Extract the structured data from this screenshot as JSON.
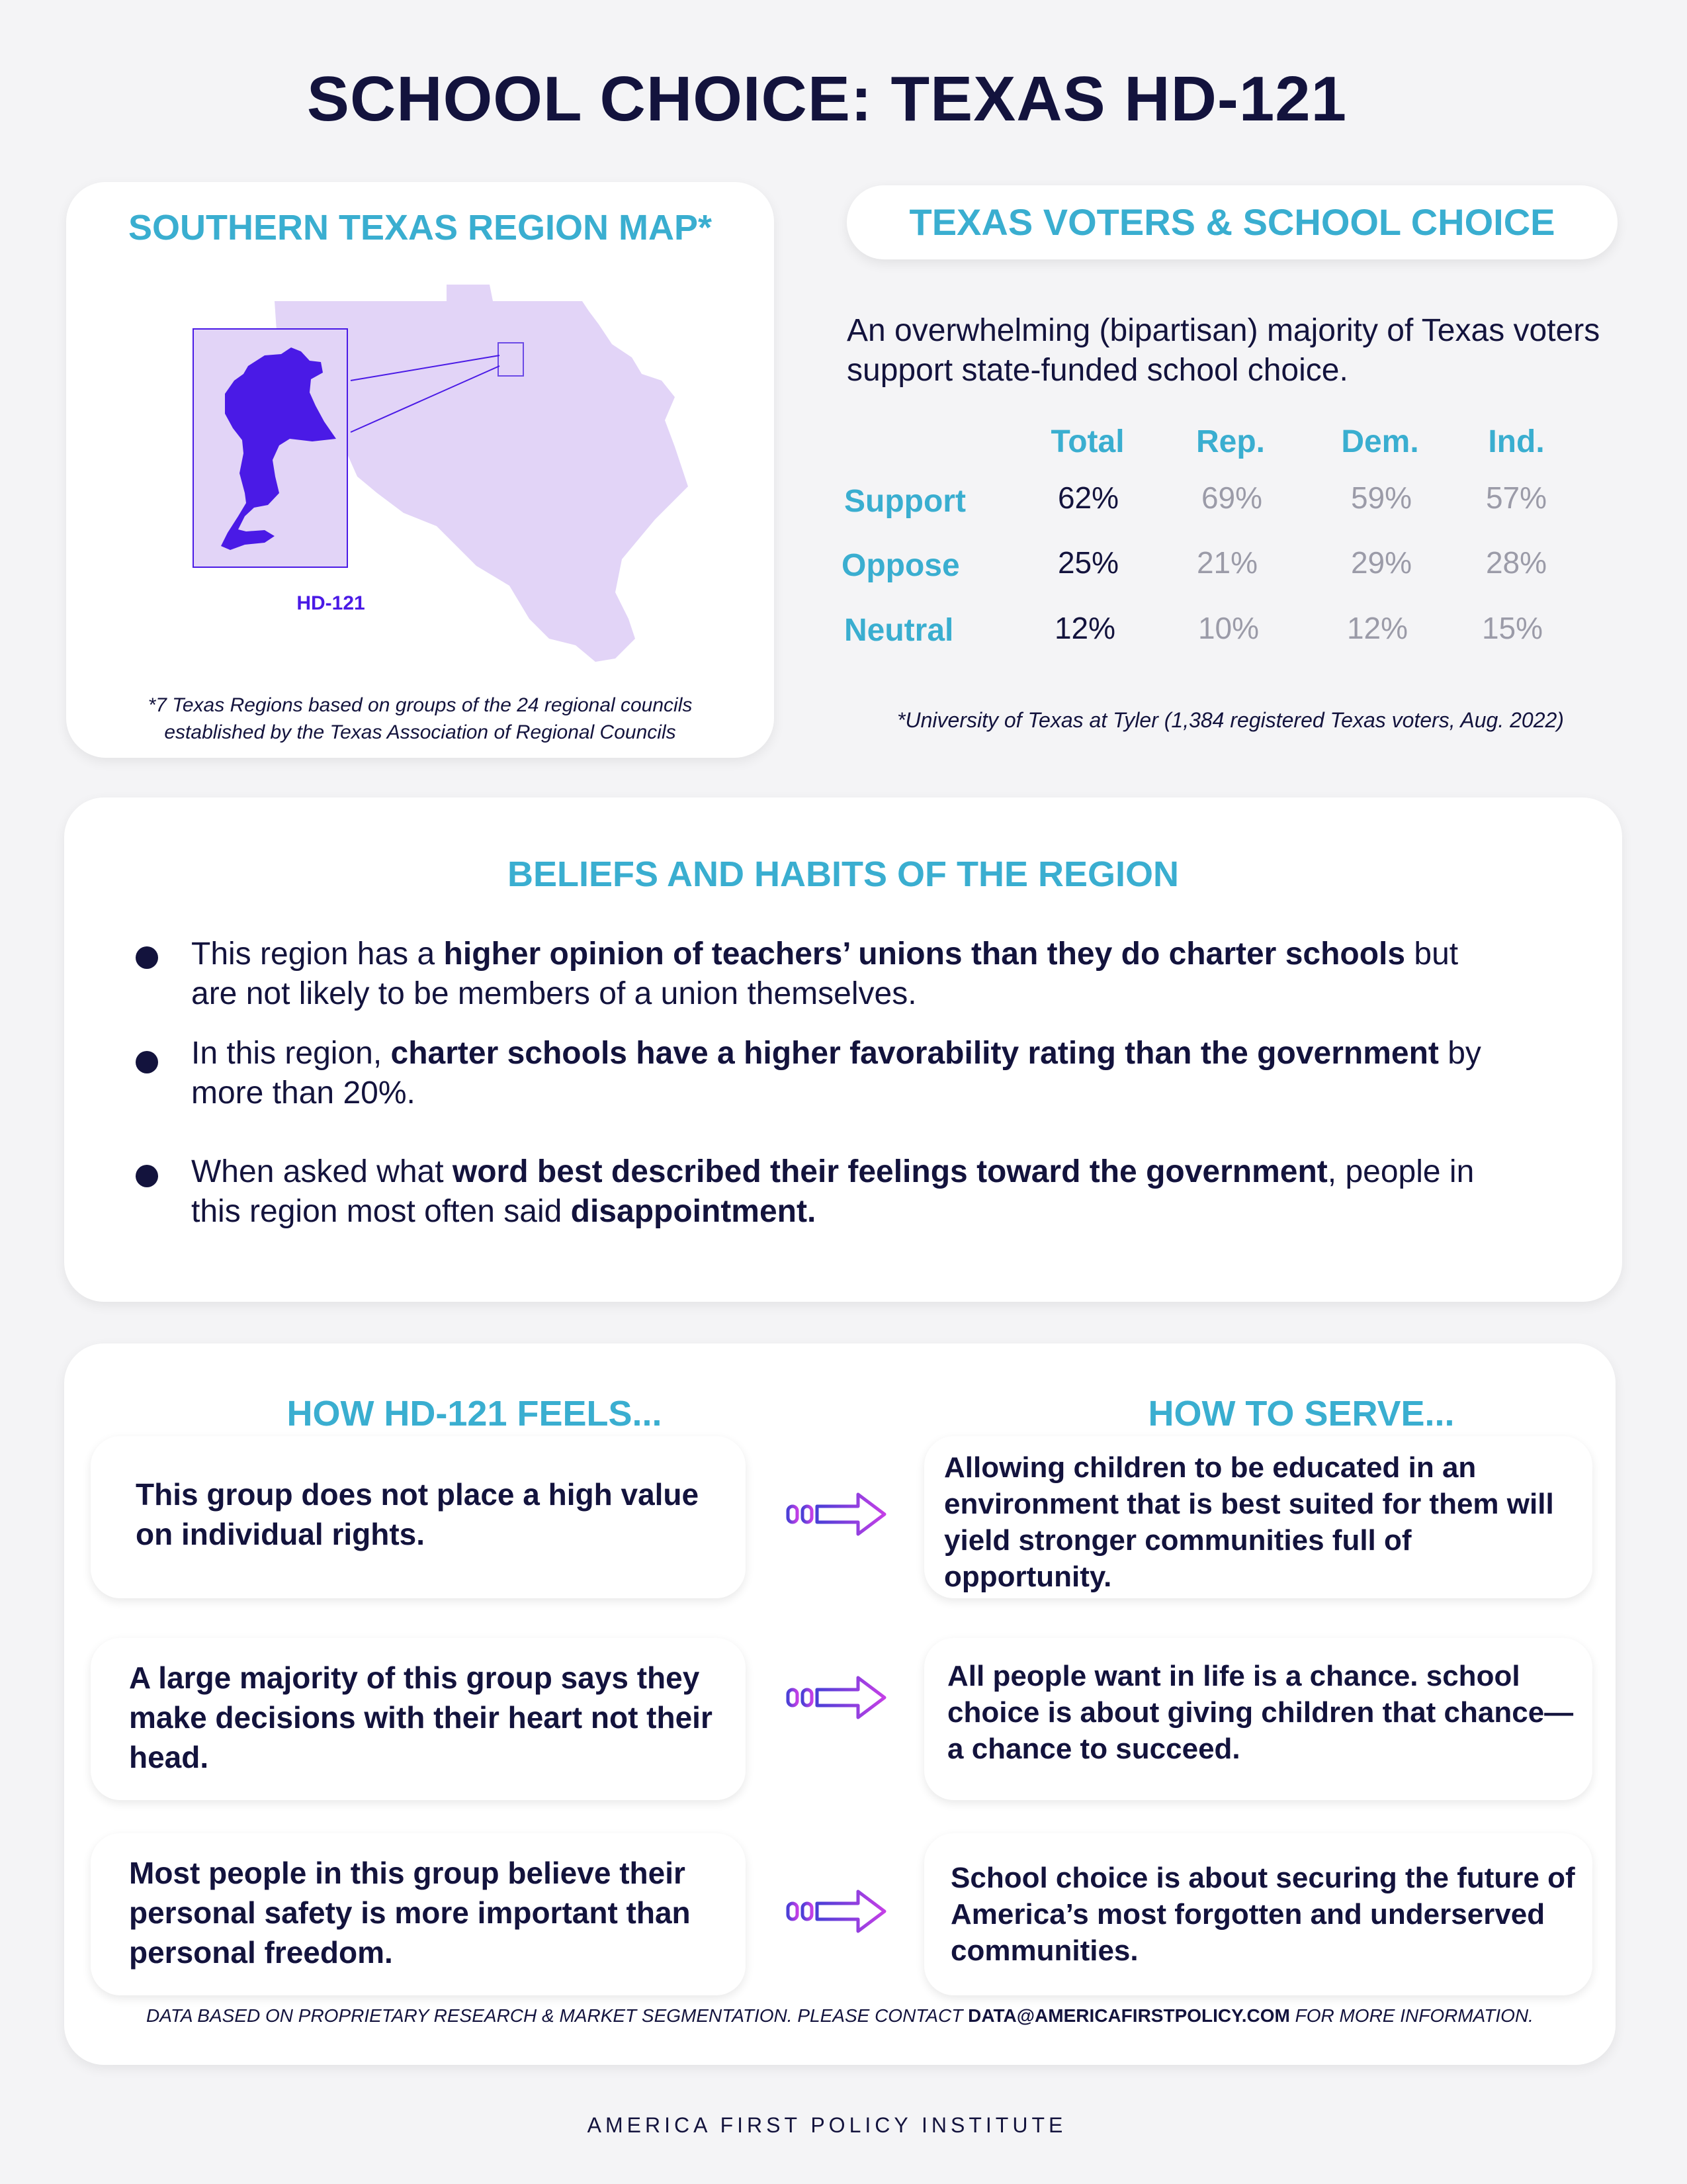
{
  "title": "SCHOOL CHOICE: TEXAS HD-121",
  "map": {
    "title": "SOUTHERN TEXAS REGION MAP*",
    "district_label": "HD-121",
    "note_line1": "*7 Texas Regions based on groups of the 24 regional councils",
    "note_line2": "established by the Texas Association of Regional Councils"
  },
  "voters": {
    "header": "TEXAS VOTERS & SCHOOL CHOICE",
    "intro": "An overwhelming (bipartisan) majority of Texas voters support state-funded school choice.",
    "columns": [
      "Total",
      "Rep.",
      "Dem.",
      "Ind."
    ],
    "rows": [
      {
        "label": "Support",
        "values": [
          "62%",
          "69%",
          "59%",
          "57%"
        ]
      },
      {
        "label": "Oppose",
        "values": [
          "25%",
          "21%",
          "29%",
          "28%"
        ]
      },
      {
        "label": "Neutral",
        "values": [
          "12%",
          "10%",
          "12%",
          "15%"
        ]
      }
    ],
    "source": "*University of Texas at Tyler (1,384 registered Texas voters, Aug. 2022)"
  },
  "beliefs": {
    "title": "BELIEFS AND HABITS OF THE REGION",
    "items": [
      {
        "p1": "This region has a ",
        "b1": "higher opinion of teachers’ unions than they do charter schools",
        "p2": " but are not likely to be members of a union themselves.",
        "b2": "",
        "p3": ""
      },
      {
        "p1": "In this region, ",
        "b1": "charter schools have a higher favorability rating than the government",
        "p2": " by more than 20%.",
        "b2": "",
        "p3": ""
      },
      {
        "p1": "When asked what ",
        "b1": "word best described their feelings toward the government",
        "p2": ", people in this region most often said ",
        "b2": "disappointment.",
        "p3": ""
      }
    ]
  },
  "feels": {
    "heading": "HOW HD-121 FEELS...",
    "items": [
      "This group does not place a high value on individual rights.",
      "A large majority of this group says they make decisions with their heart not their head.",
      "Most people in this group believe their personal safety is more important than personal freedom."
    ]
  },
  "serve": {
    "heading": "HOW TO SERVE...",
    "items": [
      "Allowing children to be educated in an environment that is best suited for them will yield stronger communities full of opportunity.",
      "All people want in life is a chance. school choice is about giving children that chance—a chance to succeed.",
      "School choice is about securing the future of America’s most forgotten and underserved communities."
    ]
  },
  "footer": {
    "note_prefix": "DATA BASED ON PROPRIETARY RESEARCH & MARKET SEGMENTATION. PLEASE CONTACT ",
    "email": "DATA@AMERICAFIRSTPOLICY.COM",
    "note_suffix": " FOR MORE INFORMATION."
  },
  "organization": "AMERICA FIRST POLICY INSTITUTE",
  "colors": {
    "navy": "#13133d",
    "teal": "#3aaed0",
    "district_purple": "#4a1ae6",
    "region_lavender": "#e2d4f7",
    "arrow_gradient": [
      "#4a3fd6",
      "#c43fe6"
    ]
  },
  "icons": [
    "arrow-right-icon",
    "bullet-icon"
  ]
}
